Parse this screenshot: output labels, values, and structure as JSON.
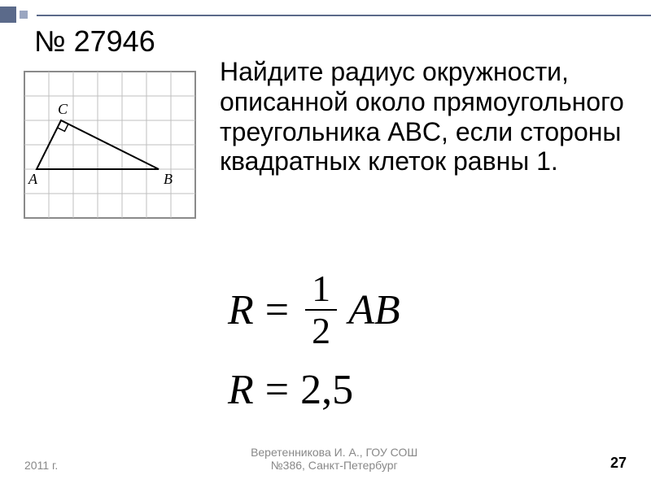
{
  "decor": {
    "color_big": "#5b6a8a",
    "color_small": "#9aa6c0",
    "line_color": "#5b6a8a"
  },
  "problem": {
    "number": "№ 27946",
    "text": "Найдите радиус окружности, описанной около прямоугольного треугольника ABC,\nесли стороны квадратных клеток равны 1."
  },
  "figure": {
    "type": "diagram",
    "grid": {
      "cols": 7,
      "rows": 6,
      "cell": 30,
      "color": "#bfbfbf",
      "border_color": "#8a8a8a"
    },
    "triangle": {
      "A": {
        "gx": 0.5,
        "gy": 4,
        "label": "A",
        "label_dx": -10,
        "label_dy": 18
      },
      "B": {
        "gx": 5.5,
        "gy": 4,
        "label": "B",
        "label_dx": 6,
        "label_dy": 18
      },
      "C": {
        "gx": 1.5,
        "gy": 2,
        "label": "C",
        "label_dx": -4,
        "label_dy": -8
      },
      "stroke": "#000000",
      "right_angle_at": "C"
    }
  },
  "formulas": {
    "f1": {
      "lhs": "R",
      "frac_num": "1",
      "frac_den": "2",
      "rhs": "AB"
    },
    "f2": {
      "lhs": "R",
      "rhs_val": "2,5"
    }
  },
  "footer": {
    "year": "2011 г.",
    "center1": "Веретенникова И. А., ГОУ СОШ",
    "center2": "№386, Санкт-Петербург",
    "page": "27"
  }
}
